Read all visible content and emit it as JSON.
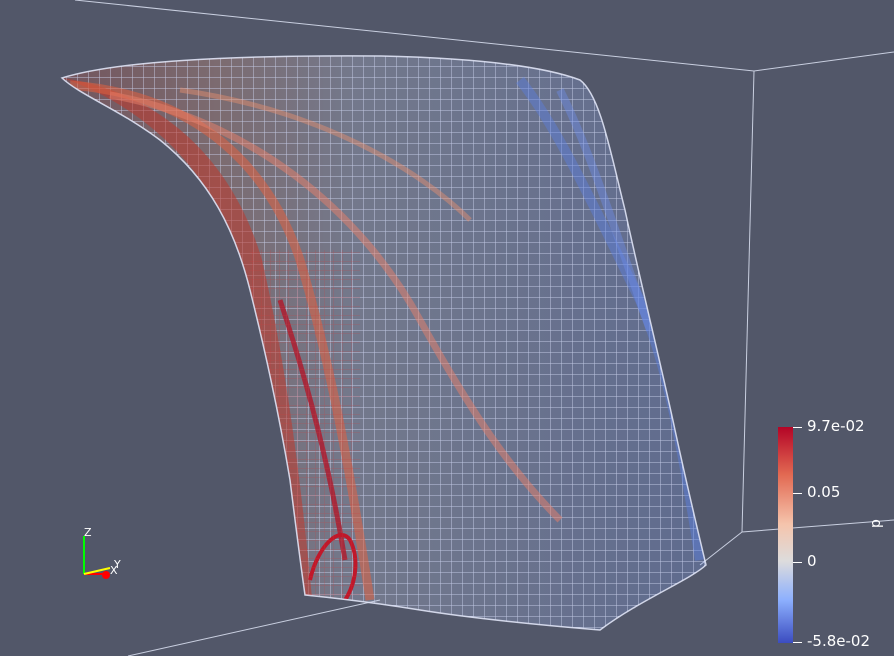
{
  "view": {
    "background": "#525769",
    "mesh_render": "wireframe",
    "colormap": "coolwarm"
  },
  "scalar_bar": {
    "title": "p",
    "tick_labels": [
      "9.7e-02",
      "0.05",
      "0",
      "-5.8e-02"
    ],
    "range": [
      -0.058,
      0.097
    ],
    "colors": {
      "max": "#b40426",
      "mid": "#dddcdc",
      "min": "#3b4cc0"
    }
  },
  "orientation_axes": {
    "z_label": "Z",
    "x_label": "X",
    "y_label": "Y",
    "x_color": "#ff0000",
    "y_color": "#ffff00",
    "z_color": "#00ff00"
  }
}
